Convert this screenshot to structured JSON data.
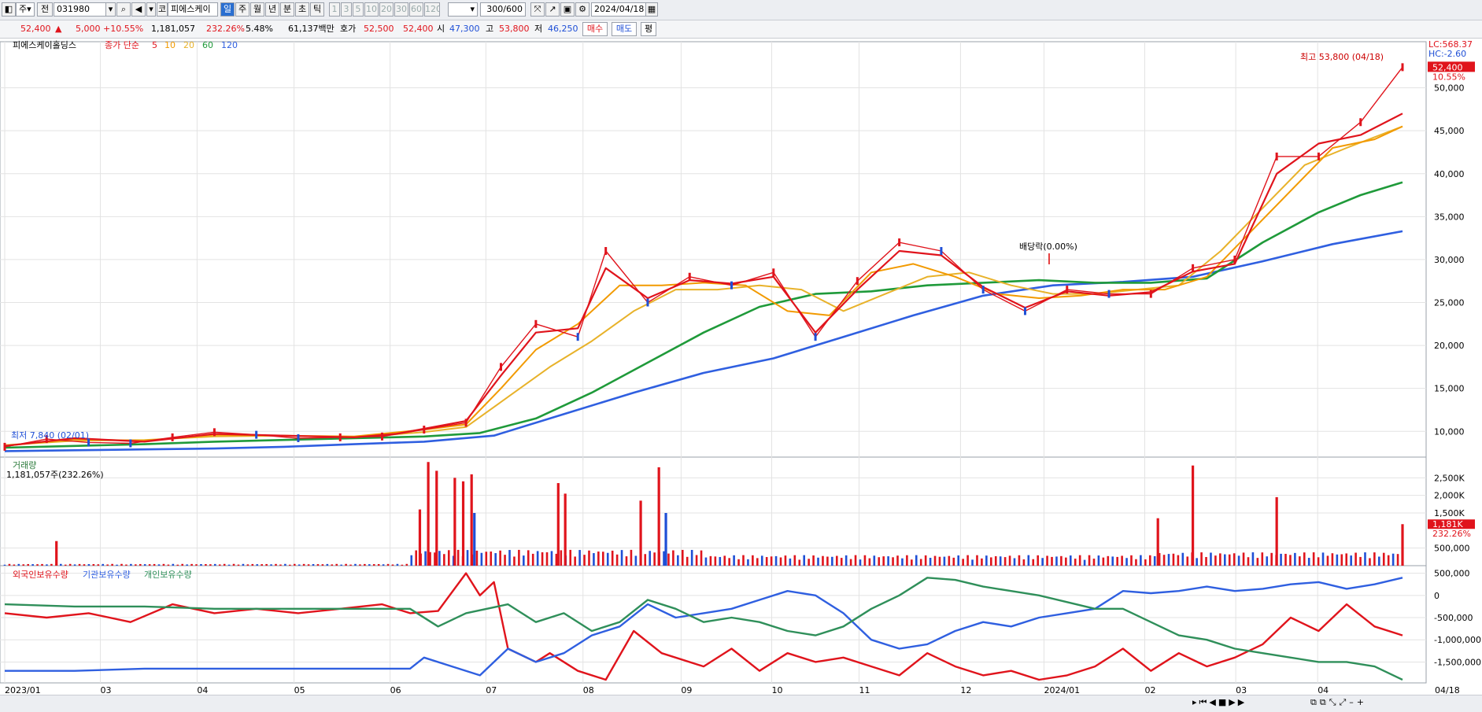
{
  "toolbar": {
    "market_left": "주",
    "market_right": "전",
    "code": "031980",
    "market_tag": "코",
    "stock_name": "피에스케이",
    "periods": [
      "일",
      "주",
      "월",
      "년",
      "분",
      "초",
      "틱"
    ],
    "active_period": "일",
    "intervals": [
      "1",
      "3",
      "5",
      "10",
      "20",
      "30",
      "60",
      "120"
    ],
    "count": "300",
    "count_max": "/600",
    "date": "2024/04/18"
  },
  "quote": {
    "price": "52,400",
    "arrow": "▲",
    "change": "5,000",
    "change_pct": "+10.55%",
    "volume": "1,181,057",
    "volume_ratio": "232.26%",
    "turnover": "5.48%",
    "amount": "61,137백만",
    "ask_label": "호가",
    "ask": "52,500",
    "bid": "52,400",
    "open_label": "시",
    "open": "47,300",
    "high_label": "고",
    "high": "53,800",
    "low_label": "저",
    "low": "46,250",
    "buy_label": "매수",
    "sell_label": "매도",
    "eval_label": "평"
  },
  "price_panel": {
    "name": "피에스케이홀딩스",
    "ma_label": "종가 단순",
    "ma_periods": [
      "5",
      "10",
      "20",
      "60",
      "120"
    ],
    "lc": "LC:568.37",
    "hc": "HC:-2.60",
    "last_tag": "52,400",
    "last_pct": "10.55%",
    "max_note": "최고 53,800 (04/18)",
    "min_note": "최저 7,840 (02/01)",
    "dividend_note": "배당락(0.00%)"
  },
  "volume_panel": {
    "title": "거래량",
    "value": "1,181,057주(232.26%)",
    "last_tag": "1,181K",
    "last_pct": "232.26%"
  },
  "holding_panel": {
    "legend": [
      "외국인보유수량",
      "기관보유수량",
      "개인보유수량"
    ]
  },
  "colors": {
    "up": "#e0141c",
    "down": "#1f4fd6",
    "ma5": "#e0141c",
    "ma10": "#f29a00",
    "ma20": "#e8b22a",
    "ma60": "#1f9a3a",
    "ma120": "#2f5fe0",
    "foreign": "#e0141c",
    "institution": "#2f5fe0",
    "individual": "#2f8f5a"
  },
  "chart_data": [
    {
      "type": "line",
      "title": "",
      "ylim": [
        7000,
        55000
      ],
      "yticks": [
        10000,
        15000,
        20000,
        25000,
        30000,
        35000,
        40000,
        45000,
        50000
      ],
      "ytick_labels": [
        "10,000",
        "15,000",
        "20,000",
        "25,000",
        "30,000",
        "35,000",
        "40,000",
        "45,000",
        "50,000"
      ],
      "x_labels": [
        "2023/01",
        "03",
        "04",
        "05",
        "06",
        "07",
        "08",
        "09",
        "10",
        "11",
        "12",
        "2024/01",
        "02",
        "03",
        "04",
        "04/18"
      ],
      "x_label_pos": [
        0,
        0.0684,
        0.1376,
        0.207,
        0.2757,
        0.3442,
        0.4137,
        0.4839,
        0.5487,
        0.6112,
        0.6838,
        0.7435,
        0.8156,
        0.8807,
        0.9393,
        1.0
      ],
      "series": [
        {
          "name": "종가",
          "x": [
            0,
            0.03,
            0.06,
            0.09,
            0.12,
            0.15,
            0.18,
            0.21,
            0.24,
            0.27,
            0.3,
            0.33,
            0.355,
            0.38,
            0.41,
            0.43,
            0.46,
            0.49,
            0.52,
            0.55,
            0.58,
            0.61,
            0.64,
            0.67,
            0.7,
            0.73,
            0.76,
            0.79,
            0.82,
            0.85,
            0.88,
            0.91,
            0.94,
            0.97,
            1.0
          ],
          "values": [
            8200,
            9100,
            8700,
            8600,
            9300,
            9900,
            9600,
            9200,
            9300,
            9400,
            10200,
            11000,
            17500,
            22500,
            21000,
            31000,
            25000,
            28000,
            27000,
            28500,
            21000,
            27500,
            32000,
            31000,
            26500,
            24000,
            26500,
            26000,
            26000,
            29000,
            30000,
            42000,
            42000,
            46000,
            52400
          ]
        },
        {
          "name": "5",
          "x": [
            0,
            0.05,
            0.1,
            0.15,
            0.2,
            0.25,
            0.28,
            0.3,
            0.33,
            0.355,
            0.38,
            0.41,
            0.43,
            0.46,
            0.49,
            0.52,
            0.55,
            0.58,
            0.61,
            0.64,
            0.67,
            0.7,
            0.73,
            0.76,
            0.79,
            0.82,
            0.85,
            0.88,
            0.91,
            0.94,
            0.97,
            1.0
          ],
          "values": [
            8300,
            9200,
            8800,
            9700,
            9500,
            9300,
            9700,
            10300,
            11200,
            16500,
            21500,
            22000,
            29000,
            25500,
            27600,
            27200,
            28000,
            21500,
            26500,
            31000,
            30500,
            26800,
            24400,
            26300,
            25800,
            26200,
            28600,
            29500,
            40000,
            43500,
            44500,
            47000
          ]
        },
        {
          "name": "10",
          "x": [
            0,
            0.05,
            0.1,
            0.15,
            0.2,
            0.25,
            0.3,
            0.33,
            0.355,
            0.38,
            0.41,
            0.44,
            0.47,
            0.5,
            0.53,
            0.56,
            0.59,
            0.62,
            0.65,
            0.68,
            0.71,
            0.74,
            0.77,
            0.8,
            0.83,
            0.86,
            0.89,
            0.92,
            0.95,
            0.98,
            1.0
          ],
          "values": [
            8300,
            9100,
            8900,
            9600,
            9500,
            9400,
            10200,
            10800,
            15000,
            19500,
            22500,
            27000,
            27000,
            27300,
            27000,
            24000,
            23500,
            28500,
            29500,
            28000,
            26000,
            25500,
            25800,
            26500,
            26500,
            28000,
            33000,
            38000,
            43000,
            44000,
            45500
          ]
        },
        {
          "name": "20",
          "x": [
            0,
            0.05,
            0.1,
            0.15,
            0.2,
            0.25,
            0.3,
            0.33,
            0.36,
            0.39,
            0.42,
            0.45,
            0.48,
            0.51,
            0.54,
            0.57,
            0.6,
            0.63,
            0.66,
            0.69,
            0.72,
            0.75,
            0.78,
            0.81,
            0.84,
            0.87,
            0.9,
            0.93,
            0.96,
            1.0
          ],
          "values": [
            8400,
            8900,
            9000,
            9400,
            9500,
            9300,
            9900,
            10500,
            14000,
            17500,
            20500,
            24000,
            26500,
            26500,
            27000,
            26500,
            24000,
            26000,
            28000,
            28500,
            27000,
            26000,
            26000,
            26500,
            27000,
            31000,
            36000,
            41000,
            43000,
            45500
          ]
        },
        {
          "name": "60",
          "x": [
            0,
            0.05,
            0.1,
            0.15,
            0.2,
            0.25,
            0.3,
            0.34,
            0.38,
            0.42,
            0.46,
            0.5,
            0.54,
            0.58,
            0.62,
            0.66,
            0.7,
            0.74,
            0.78,
            0.82,
            0.86,
            0.9,
            0.94,
            0.97,
            1.0
          ],
          "values": [
            8100,
            8300,
            8500,
            8800,
            9000,
            9200,
            9400,
            9800,
            11500,
            14500,
            18000,
            21500,
            24500,
            26000,
            26300,
            27000,
            27300,
            27600,
            27300,
            27300,
            27800,
            32000,
            35500,
            37500,
            39000
          ]
        },
        {
          "name": "120",
          "x": [
            0,
            0.05,
            0.1,
            0.15,
            0.2,
            0.25,
            0.3,
            0.35,
            0.4,
            0.45,
            0.5,
            0.55,
            0.6,
            0.65,
            0.7,
            0.75,
            0.8,
            0.85,
            0.9,
            0.95,
            1.0
          ],
          "values": [
            7700,
            7800,
            7900,
            8000,
            8200,
            8500,
            8800,
            9500,
            12000,
            14500,
            16800,
            18500,
            21000,
            23500,
            25800,
            27000,
            27400,
            28000,
            29800,
            31800,
            33300
          ]
        }
      ]
    },
    {
      "type": "bar",
      "title": "거래량",
      "ylim": [
        0,
        3000000
      ],
      "yticks": [
        500000,
        1500000,
        2000000,
        2500000
      ],
      "ytick_labels": [
        "500,000",
        "1,500K",
        "2,000K",
        "2,500K"
      ],
      "spikes": [
        {
          "x": 0.037,
          "value": 700000,
          "dir": "up"
        },
        {
          "x": 0.297,
          "value": 1600000,
          "dir": "up"
        },
        {
          "x": 0.303,
          "value": 2950000,
          "dir": "up"
        },
        {
          "x": 0.309,
          "value": 2700000,
          "dir": "up"
        },
        {
          "x": 0.322,
          "value": 2500000,
          "dir": "up"
        },
        {
          "x": 0.328,
          "value": 2400000,
          "dir": "up"
        },
        {
          "x": 0.334,
          "value": 2600000,
          "dir": "up"
        },
        {
          "x": 0.336,
          "value": 1500000,
          "dir": "down"
        },
        {
          "x": 0.396,
          "value": 2350000,
          "dir": "up"
        },
        {
          "x": 0.401,
          "value": 2050000,
          "dir": "up"
        },
        {
          "x": 0.455,
          "value": 1850000,
          "dir": "up"
        },
        {
          "x": 0.468,
          "value": 2800000,
          "dir": "up"
        },
        {
          "x": 0.473,
          "value": 1500000,
          "dir": "down"
        },
        {
          "x": 0.825,
          "value": 1350000,
          "dir": "up"
        },
        {
          "x": 0.85,
          "value": 2850000,
          "dir": "up"
        },
        {
          "x": 0.91,
          "value": 1950000,
          "dir": "up"
        },
        {
          "x": 1.0,
          "value": 1181057,
          "dir": "up"
        }
      ]
    },
    {
      "type": "line",
      "title": "보유수량",
      "ylim": [
        -1900000,
        600000
      ],
      "yticks": [
        500000,
        0,
        -500000,
        -1000000,
        -1500000
      ],
      "ytick_labels": [
        "500,000",
        "0",
        "-500,000",
        "-1,000,000",
        "-1,500,000"
      ],
      "series": [
        {
          "name": "외국인보유수량",
          "x": [
            0,
            0.03,
            0.06,
            0.09,
            0.12,
            0.15,
            0.18,
            0.21,
            0.24,
            0.27,
            0.29,
            0.31,
            0.33,
            0.34,
            0.35,
            0.36,
            0.38,
            0.39,
            0.41,
            0.43,
            0.45,
            0.47,
            0.5,
            0.52,
            0.54,
            0.56,
            0.58,
            0.6,
            0.62,
            0.64,
            0.66,
            0.68,
            0.7,
            0.72,
            0.74,
            0.76,
            0.78,
            0.8,
            0.82,
            0.84,
            0.86,
            0.88,
            0.9,
            0.92,
            0.94,
            0.96,
            0.98,
            1.0
          ],
          "values": [
            -400000,
            -500000,
            -400000,
            -600000,
            -200000,
            -400000,
            -300000,
            -400000,
            -300000,
            -200000,
            -400000,
            -350000,
            500000,
            0,
            300000,
            -1200000,
            -1500000,
            -1300000,
            -1700000,
            -1900000,
            -800000,
            -1300000,
            -1600000,
            -1200000,
            -1700000,
            -1300000,
            -1500000,
            -1400000,
            -1600000,
            -1800000,
            -1300000,
            -1600000,
            -1800000,
            -1700000,
            -1900000,
            -1800000,
            -1600000,
            -1200000,
            -1700000,
            -1300000,
            -1600000,
            -1400000,
            -1100000,
            -500000,
            -800000,
            -200000,
            -700000,
            -900000
          ]
        },
        {
          "name": "기관보유수량",
          "x": [
            0,
            0.05,
            0.1,
            0.15,
            0.2,
            0.25,
            0.29,
            0.3,
            0.32,
            0.34,
            0.36,
            0.38,
            0.4,
            0.42,
            0.44,
            0.46,
            0.48,
            0.5,
            0.52,
            0.54,
            0.56,
            0.58,
            0.6,
            0.62,
            0.64,
            0.66,
            0.68,
            0.7,
            0.72,
            0.74,
            0.76,
            0.78,
            0.8,
            0.82,
            0.84,
            0.86,
            0.88,
            0.9,
            0.92,
            0.94,
            0.96,
            0.98,
            1.0
          ],
          "values": [
            -1700000,
            -1700000,
            -1650000,
            -1650000,
            -1650000,
            -1650000,
            -1650000,
            -1400000,
            -1600000,
            -1800000,
            -1200000,
            -1500000,
            -1300000,
            -900000,
            -700000,
            -200000,
            -500000,
            -400000,
            -300000,
            -100000,
            100000,
            0,
            -400000,
            -1000000,
            -1200000,
            -1100000,
            -800000,
            -600000,
            -700000,
            -500000,
            -400000,
            -300000,
            100000,
            50000,
            100000,
            200000,
            100000,
            150000,
            250000,
            300000,
            150000,
            250000,
            400000
          ]
        },
        {
          "name": "개인보유수량",
          "x": [
            0,
            0.05,
            0.1,
            0.15,
            0.2,
            0.25,
            0.29,
            0.31,
            0.33,
            0.36,
            0.38,
            0.4,
            0.42,
            0.44,
            0.46,
            0.48,
            0.5,
            0.52,
            0.54,
            0.56,
            0.58,
            0.6,
            0.62,
            0.64,
            0.66,
            0.68,
            0.7,
            0.72,
            0.74,
            0.76,
            0.78,
            0.8,
            0.82,
            0.84,
            0.86,
            0.88,
            0.9,
            0.92,
            0.94,
            0.96,
            0.98,
            1.0
          ],
          "values": [
            -200000,
            -250000,
            -250000,
            -300000,
            -300000,
            -300000,
            -300000,
            -700000,
            -400000,
            -200000,
            -600000,
            -400000,
            -800000,
            -600000,
            -100000,
            -300000,
            -600000,
            -500000,
            -600000,
            -800000,
            -900000,
            -700000,
            -300000,
            0,
            400000,
            350000,
            200000,
            100000,
            0,
            -150000,
            -300000,
            -300000,
            -600000,
            -900000,
            -1000000,
            -1200000,
            -1300000,
            -1400000,
            -1500000,
            -1500000,
            -1600000,
            -1900000
          ]
        }
      ]
    }
  ]
}
